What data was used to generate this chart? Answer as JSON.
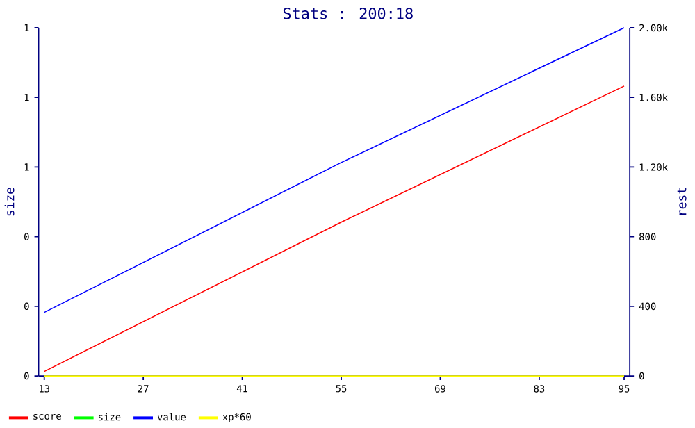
{
  "chart_data": {
    "type": "line",
    "title": "Stats : 200:18",
    "xlabel": null,
    "ylabel": "size",
    "y2label": "rest",
    "x": [
      13,
      55,
      95
    ],
    "xlim": [
      12.2,
      95.8
    ],
    "xticks": [
      13,
      27,
      41,
      55,
      69,
      83,
      95
    ],
    "ylim": [
      0,
      1
    ],
    "yticks": [
      {
        "value": 0,
        "label": "0"
      },
      {
        "value": 0.2,
        "label": "0"
      },
      {
        "value": 0.4,
        "label": "0"
      },
      {
        "value": 0.6,
        "label": "1"
      },
      {
        "value": 0.8,
        "label": "1"
      },
      {
        "value": 1,
        "label": "1"
      }
    ],
    "y2lim": [
      0,
      2000
    ],
    "y2ticks": [
      0,
      400,
      800,
      {
        "value": 1200,
        "label": "1.20k"
      },
      {
        "value": 1600,
        "label": "1.60k"
      },
      {
        "value": 2000,
        "label": "2.00k"
      }
    ],
    "legend": "bottom",
    "grid": false,
    "marker": "none",
    "line_style": "solid",
    "series": [
      {
        "name": "score",
        "color": "#ff0000",
        "axis": "y2",
        "values": [
          26,
          883,
          1665
        ]
      },
      {
        "name": "size",
        "color": "#00ff00",
        "axis": "y",
        "values": [
          null,
          null,
          null
        ]
      },
      {
        "name": "value",
        "color": "#0000ff",
        "axis": "y2",
        "values": [
          365,
          1226,
          2000
        ]
      },
      {
        "name": "xp*60",
        "color": "#ffff00",
        "axis": "y2",
        "values": [
          0,
          0,
          0
        ]
      }
    ]
  }
}
